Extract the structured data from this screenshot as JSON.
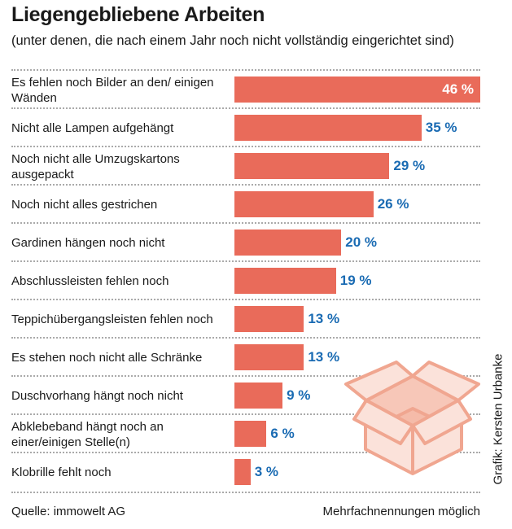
{
  "chart_data": {
    "type": "bar",
    "orientation": "horizontal",
    "title": "Liegengebliebene Arbeiten",
    "subtitle": "(unter denen, die nach einem Jahr noch nicht vollständig eingerichtet sind)",
    "categories": [
      "Es fehlen noch Bilder an den/ einigen Wänden",
      "Nicht alle Lampen aufgehängt",
      "Noch nicht alle Umzugskartons ausgepackt",
      "Noch nicht alles gestrichen",
      "Gardinen hängen noch nicht",
      "Abschlussleisten fehlen noch",
      "Teppichübergangsleisten fehlen noch",
      "Es stehen noch nicht alle Schränke",
      "Duschvorhang hängt noch nicht",
      "Abklebeband hängt noch an einer/einigen Stelle(n)",
      "Klobrille fehlt noch"
    ],
    "values": [
      46,
      35,
      29,
      26,
      20,
      19,
      13,
      13,
      9,
      6,
      3
    ],
    "value_labels": [
      "46 %",
      "35 %",
      "29 %",
      "26 %",
      "20 %",
      "19 %",
      "13 %",
      "13 %",
      "9 %",
      "6 %",
      "3 %"
    ],
    "unit": "%",
    "xlim": [
      0,
      46
    ],
    "bar_color": "#e96b5a",
    "label_color": "#1a6bb3"
  },
  "footer": {
    "source": "Quelle:  immowelt AG",
    "note": "Mehrfachnennungen möglich",
    "credit": "Grafik: Kersten Urbanke"
  }
}
